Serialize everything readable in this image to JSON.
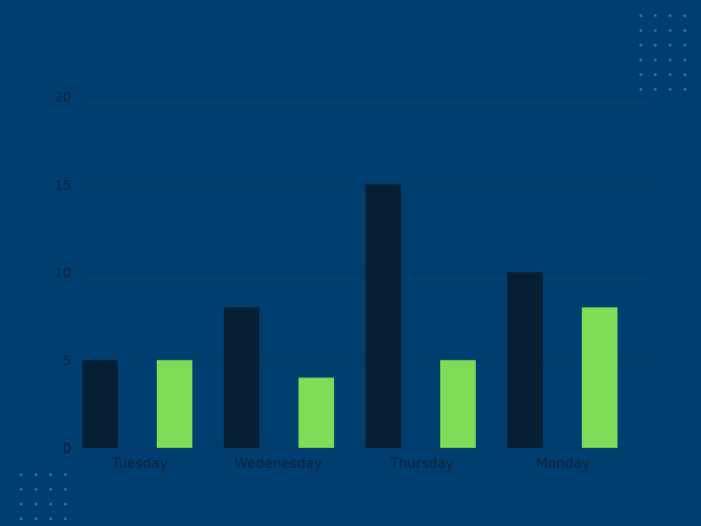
{
  "colors": {
    "background": "#003e70",
    "series_dark": "#061f33",
    "series_green": "#80db57",
    "text": "#0d2236",
    "gridline": "#05355c",
    "dots": "#1b8ab0"
  },
  "chart_data": {
    "type": "bar",
    "title": "",
    "xlabel": "",
    "ylabel": "",
    "categories": [
      "Tuesday",
      "Wedenesday",
      "Thursday",
      "Monday"
    ],
    "series": [
      {
        "values": [
          5,
          8,
          15,
          10
        ],
        "color": "#061f33"
      },
      {
        "values": [
          5,
          4,
          5,
          8
        ],
        "color": "#80db57"
      }
    ],
    "ylim": [
      0,
      20
    ],
    "yticks": [
      "0",
      "5",
      "10",
      "15",
      "20"
    ],
    "grid": true,
    "legend": "none"
  }
}
